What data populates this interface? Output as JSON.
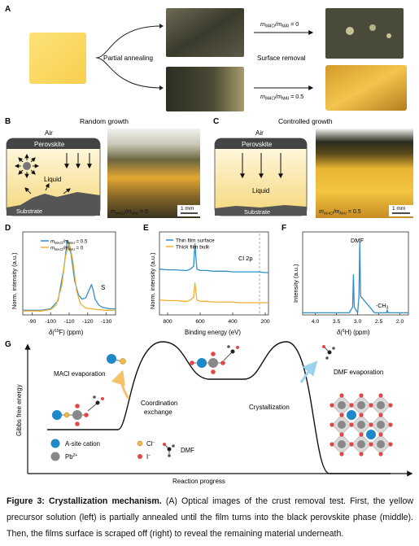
{
  "panels": {
    "A": {
      "letter": "A",
      "partial_annealing": "Partial annealing",
      "surface_removal": "Surface removal",
      "ratio_top": "m",
      "ratio_top_sub1": "MACl",
      "ratio_top_mid": "/m",
      "ratio_top_sub2": "MAI",
      "ratio_top_val": " = 0",
      "ratio_bot": "m",
      "ratio_bot_sub1": "MACl",
      "ratio_bot_mid": "/m",
      "ratio_bot_sub2": "MAI",
      "ratio_bot_val": " = 0.5"
    },
    "B": {
      "letter": "B",
      "title": "Random growth",
      "air": "Air",
      "perovskite": "Perovskite",
      "liquid": "Liquid",
      "substrate": "Substrate",
      "photo_m": "m",
      "photo_sub1": "MACl",
      "photo_mid": "/m",
      "photo_sub2": "MAI",
      "photo_val": " = 0",
      "scale": "1 mm"
    },
    "C": {
      "letter": "C",
      "title": "Controlled growth",
      "air": "Air",
      "perovskite": "Perovskite",
      "liquid": "Liquid",
      "substrate": "Substrate",
      "photo_m": "m",
      "photo_sub1": "MACl",
      "photo_mid": "/m",
      "photo_sub2": "MAI",
      "photo_val": " = 0.5",
      "scale": "1 mm"
    },
    "D": {
      "letter": "D",
      "ylabel": "Norm. intensity (a.u.)",
      "xlabel_pre": "δ(",
      "xlabel_sup": "19",
      "xlabel_post": "F) (ppm)",
      "legend": [
        "m_MACl/m_MAI = 0.5",
        "m_MACl/m_MAI = 0"
      ],
      "peak_label": "S",
      "ticks": [
        "-90",
        "-100",
        "-110",
        "-120",
        "-130"
      ]
    },
    "E": {
      "letter": "E",
      "ylabel": "Norm. intensity (a.u.)",
      "xlabel": "Binding energy (eV)",
      "legend": [
        "Thin film surface",
        "Thick film bulk"
      ],
      "annotation": "Cl 2p",
      "ticks": [
        "800",
        "600",
        "400",
        "200"
      ]
    },
    "F": {
      "letter": "F",
      "ylabel": "Intensity (a.u.)",
      "xlabel_pre": "δ(",
      "xlabel_sup": "1",
      "xlabel_post": "H) (ppm)",
      "peak_dmf": "DMF",
      "peak_ch3": "-CH",
      "peak_ch3_sub": "3",
      "ticks": [
        "4.0",
        "3.5",
        "3.0",
        "2.5",
        "2.0"
      ]
    },
    "G": {
      "letter": "G",
      "ylabel": "Gibbs free energy",
      "xlabel": "Reaction progress",
      "macl_evap": "MACl evaporation",
      "coord": "Coordination",
      "coord2": "exchange",
      "cryst": "Crystallization",
      "dmf_evap": "DMF evaporation",
      "legend_asite": "A-site cation",
      "legend_pb": "Pb",
      "legend_pb_sup": "2+",
      "legend_cl": "Cl",
      "legend_cl_sup": "−",
      "legend_i": "I",
      "legend_i_sup": "−",
      "legend_dmf": "DMF"
    }
  },
  "chart_data": [
    {
      "panel": "D",
      "type": "line",
      "xlabel": "δ(19F) (ppm)",
      "ylabel": "Norm. intensity (a.u.)",
      "xlim": [
        -85,
        -135
      ],
      "series": [
        {
          "name": "mMACl/mMAI = 0.5",
          "color": "#2f8fc7",
          "x": [
            -85,
            -95,
            -100,
            -104,
            -107,
            -109,
            -111,
            -113,
            -115,
            -117,
            -119,
            -121,
            -122,
            -123,
            -124,
            -126,
            -128,
            -132,
            -135
          ],
          "y": [
            0.05,
            0.05,
            0.07,
            0.18,
            0.6,
            1.0,
            0.82,
            0.45,
            0.26,
            0.2,
            0.22,
            0.34,
            0.4,
            0.32,
            0.2,
            0.12,
            0.09,
            0.07,
            0.07
          ]
        },
        {
          "name": "mMACl/mMAI = 0",
          "color": "#f0ae34",
          "x": [
            -85,
            -95,
            -100,
            -103,
            -106,
            -108,
            -110,
            -112,
            -114,
            -116,
            -119,
            -122,
            -125,
            -130,
            -135
          ],
          "y": [
            0.04,
            0.04,
            0.06,
            0.12,
            0.38,
            0.78,
            0.98,
            0.72,
            0.32,
            0.14,
            0.08,
            0.07,
            0.06,
            0.05,
            0.05
          ]
        }
      ]
    },
    {
      "panel": "E",
      "type": "line",
      "xlabel": "Binding energy (eV)",
      "ylabel": "Norm. intensity (a.u.)",
      "xlim": [
        850,
        180
      ],
      "series": [
        {
          "name": "Thin film surface",
          "color": "#2f8fc7",
          "x": [
            850,
            800,
            750,
            700,
            680,
            660,
            640,
            632,
            625,
            620,
            600,
            560,
            520,
            480,
            440,
            400,
            360,
            320,
            280,
            240,
            200,
            180
          ],
          "y": [
            0.64,
            0.63,
            0.63,
            0.62,
            0.62,
            0.64,
            0.68,
            1.0,
            0.78,
            0.64,
            0.62,
            0.62,
            0.61,
            0.61,
            0.61,
            0.6,
            0.6,
            0.6,
            0.6,
            0.6,
            0.59,
            0.59
          ]
        },
        {
          "name": "Thick film bulk",
          "color": "#f0ae34",
          "x": [
            850,
            800,
            750,
            700,
            680,
            660,
            640,
            632,
            625,
            620,
            600,
            560,
            520,
            480,
            440,
            400,
            360,
            320,
            280,
            240,
            200,
            180
          ],
          "y": [
            0.2,
            0.19,
            0.19,
            0.18,
            0.18,
            0.2,
            0.24,
            0.44,
            0.3,
            0.2,
            0.18,
            0.18,
            0.17,
            0.17,
            0.17,
            0.17,
            0.16,
            0.16,
            0.16,
            0.16,
            0.16,
            0.16
          ]
        }
      ]
    },
    {
      "panel": "F",
      "type": "line",
      "xlabel": "δ(1H) (ppm)",
      "ylabel": "Intensity (a.u.)",
      "xlim": [
        4.3,
        1.8
      ],
      "series": [
        {
          "name": "",
          "color": "#2f8fc7",
          "x": [
            4.3,
            3.2,
            3.12,
            3.1,
            3.08,
            3.0,
            2.97,
            2.95,
            2.93,
            2.6,
            2.32,
            2.3,
            2.28,
            1.8
          ],
          "y": [
            0.02,
            0.02,
            0.1,
            0.55,
            0.1,
            0.02,
            0.25,
            1.0,
            0.25,
            0.02,
            0.02,
            0.06,
            0.02,
            0.02
          ]
        }
      ]
    }
  ],
  "caption": {
    "label": "Figure 3: Crystallization mechanism.",
    "text": " (A) Optical images of the crust removal test. First, the yellow precursor solution (left) is partially annealed until the film turns into the black perovskite phase (middle). Then, the films surface is scraped off (right) to reveal the remaining material underneath."
  }
}
